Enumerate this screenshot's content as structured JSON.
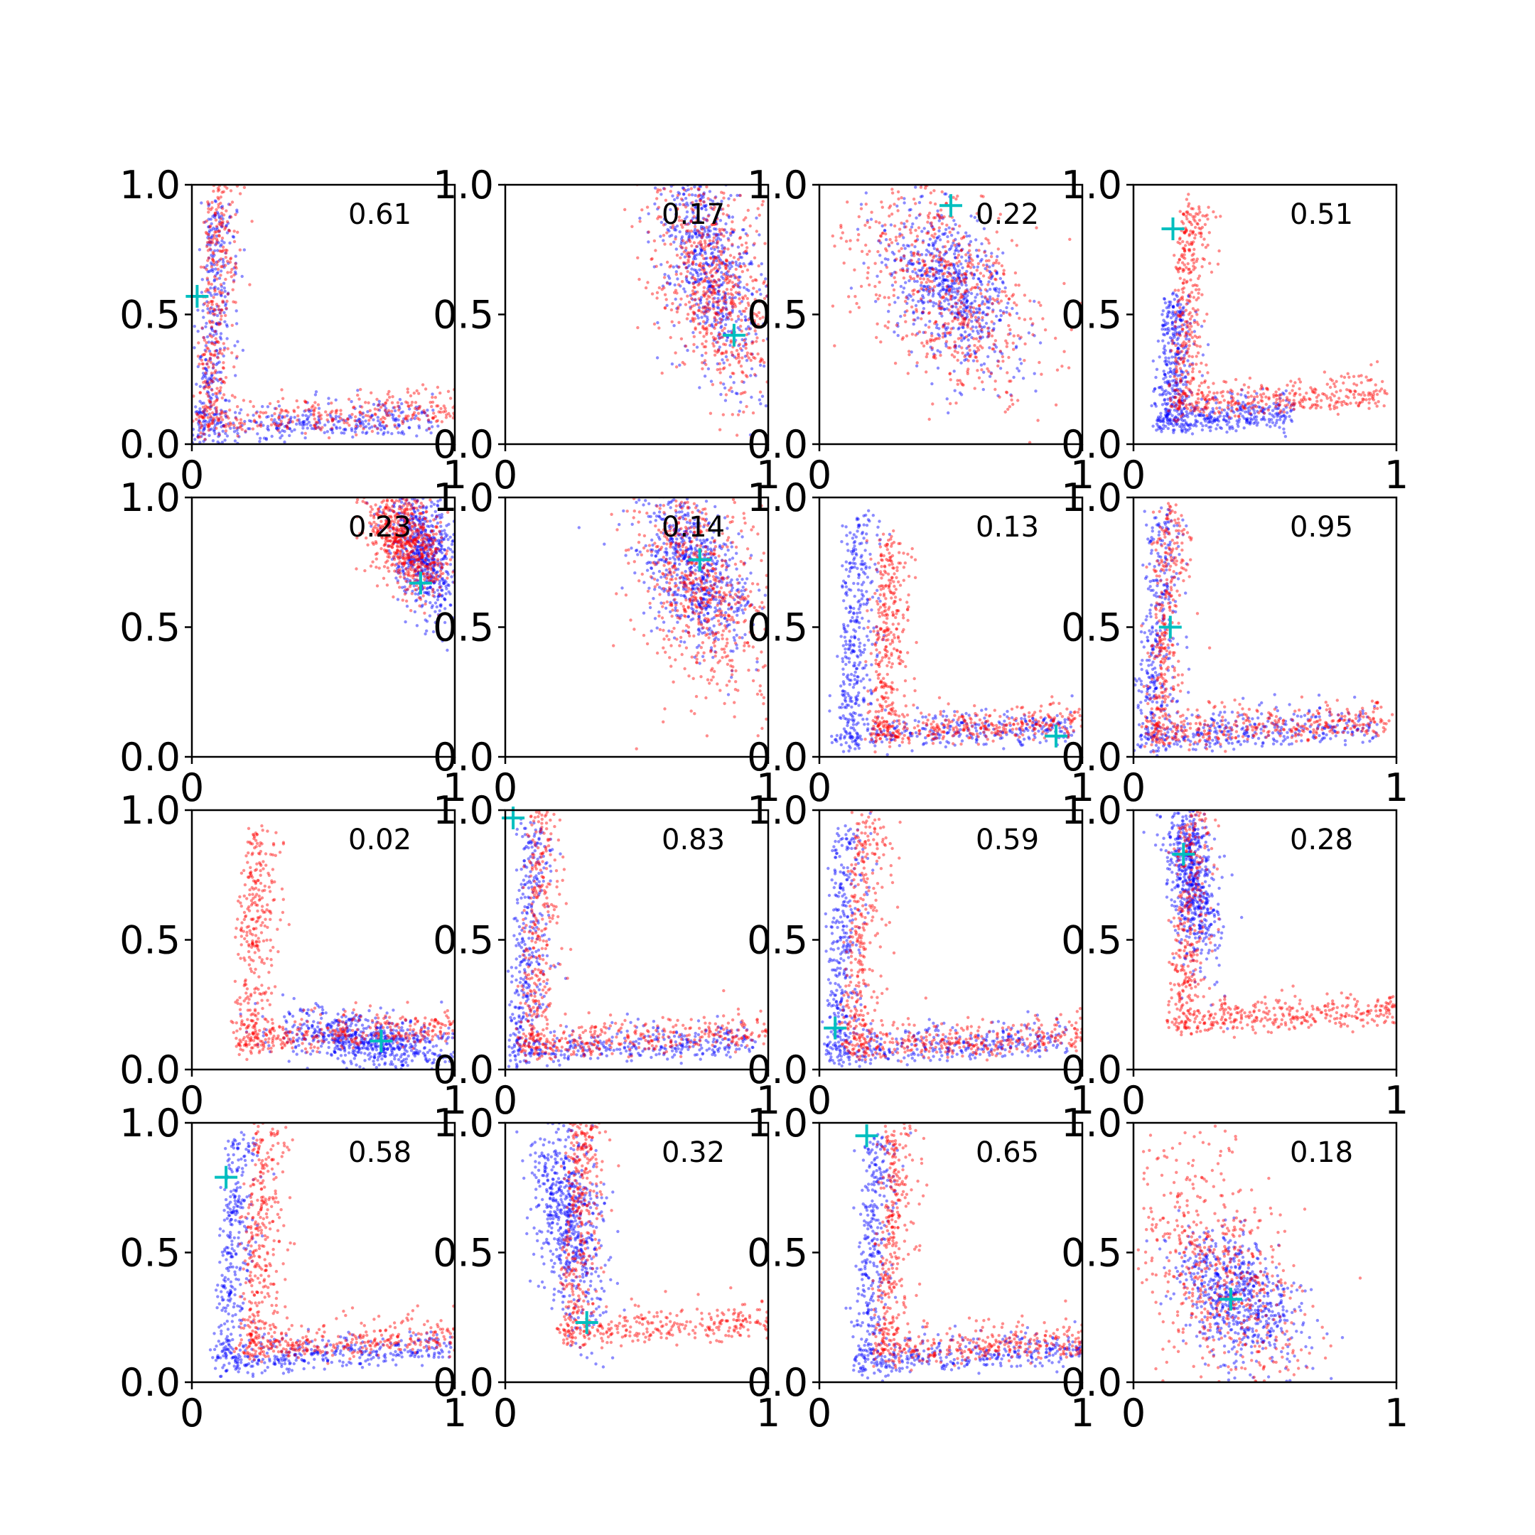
{
  "colors": {
    "series_a": "#0000ff",
    "series_b": "#ff0000",
    "marker": "#00bfbf",
    "axes": "#000000",
    "background": "#ffffff"
  },
  "chart_data": [
    {
      "type": "scatter",
      "annotation": "0.61",
      "marker": {
        "x": 0.02,
        "y": 0.57
      },
      "series": [
        {
          "pattern": "corner",
          "x0": 0.02,
          "y0": 0.02,
          "spread": 0.9
        },
        {
          "pattern": "corner",
          "x0": 0.03,
          "y0": 0.05,
          "spread": 1.0
        }
      ],
      "xlim": [
        0,
        1
      ],
      "ylim": [
        0,
        1
      ],
      "xticks": [
        "0",
        "1"
      ],
      "yticks": [
        "0.0",
        "0.5",
        "1.0"
      ]
    },
    {
      "type": "scatter",
      "annotation": "0.17",
      "marker": {
        "x": 0.87,
        "y": 0.42
      },
      "series": [
        {
          "pattern": "blob",
          "cx": 0.78,
          "cy": 0.7,
          "sx": 0.1,
          "sy": 0.2
        },
        {
          "pattern": "blob",
          "cx": 0.8,
          "cy": 0.62,
          "sx": 0.12,
          "sy": 0.2
        }
      ],
      "xlim": [
        0,
        1
      ],
      "ylim": [
        0,
        1
      ],
      "xticks": [
        "0",
        "1"
      ],
      "yticks": [
        "0.0",
        "0.5",
        "1.0"
      ]
    },
    {
      "type": "scatter",
      "annotation": "0.22",
      "marker": {
        "x": 0.5,
        "y": 0.92
      },
      "series": [
        {
          "pattern": "blob",
          "cx": 0.5,
          "cy": 0.6,
          "sx": 0.12,
          "sy": 0.14
        },
        {
          "pattern": "blob",
          "cx": 0.48,
          "cy": 0.6,
          "sx": 0.18,
          "sy": 0.2
        }
      ],
      "xlim": [
        0,
        1
      ],
      "ylim": [
        0,
        1
      ],
      "xticks": [
        "0",
        "1"
      ],
      "yticks": [
        "0.0",
        "0.5",
        "1.0"
      ]
    },
    {
      "type": "scatter",
      "annotation": "0.51",
      "marker": {
        "x": 0.15,
        "y": 0.83
      },
      "series": [
        {
          "pattern": "corner",
          "x0": 0.1,
          "y0": 0.06,
          "spread": 0.5
        },
        {
          "pattern": "corner",
          "x0": 0.15,
          "y0": 0.12,
          "spread": 0.8
        }
      ],
      "xlim": [
        0,
        1
      ],
      "ylim": [
        0,
        1
      ],
      "xticks": [
        "0",
        "1"
      ],
      "yticks": [
        "0.0",
        "0.5",
        "1.0"
      ]
    },
    {
      "type": "scatter",
      "annotation": "0.23",
      "marker": {
        "x": 0.87,
        "y": 0.67
      },
      "series": [
        {
          "pattern": "blob",
          "cx": 0.88,
          "cy": 0.8,
          "sx": 0.07,
          "sy": 0.12
        },
        {
          "pattern": "blob",
          "cx": 0.82,
          "cy": 0.83,
          "sx": 0.08,
          "sy": 0.09
        }
      ],
      "xlim": [
        0,
        1
      ],
      "ylim": [
        0,
        1
      ],
      "xticks": [
        "0",
        "1"
      ],
      "yticks": [
        "0.0",
        "0.5",
        "1.0"
      ]
    },
    {
      "type": "scatter",
      "annotation": "0.14",
      "marker": {
        "x": 0.74,
        "y": 0.76
      },
      "series": [
        {
          "pattern": "blob",
          "cx": 0.72,
          "cy": 0.72,
          "sx": 0.1,
          "sy": 0.14
        },
        {
          "pattern": "blob",
          "cx": 0.74,
          "cy": 0.65,
          "sx": 0.13,
          "sy": 0.2
        }
      ],
      "xlim": [
        0,
        1
      ],
      "ylim": [
        0,
        1
      ],
      "xticks": [
        "0",
        "1"
      ],
      "yticks": [
        "0.0",
        "0.5",
        "1.0"
      ]
    },
    {
      "type": "scatter",
      "annotation": "0.13",
      "marker": {
        "x": 0.9,
        "y": 0.08
      },
      "series": [
        {
          "pattern": "corner",
          "x0": 0.08,
          "y0": 0.04,
          "spread": 0.9
        },
        {
          "pattern": "corner",
          "x0": 0.2,
          "y0": 0.06,
          "spread": 0.8
        }
      ],
      "xlim": [
        0,
        1
      ],
      "ylim": [
        0,
        1
      ],
      "xticks": [
        "0",
        "1"
      ],
      "yticks": [
        "0.0",
        "0.5",
        "1.0"
      ]
    },
    {
      "type": "scatter",
      "annotation": "0.95",
      "marker": {
        "x": 0.14,
        "y": 0.5
      },
      "series": [
        {
          "pattern": "corner",
          "x0": 0.03,
          "y0": 0.04,
          "spread": 0.9
        },
        {
          "pattern": "corner",
          "x0": 0.06,
          "y0": 0.06,
          "spread": 0.9
        }
      ],
      "xlim": [
        0,
        1
      ],
      "ylim": [
        0,
        1
      ],
      "xticks": [
        "0",
        "1"
      ],
      "yticks": [
        "0.0",
        "0.5",
        "1.0"
      ]
    },
    {
      "type": "scatter",
      "annotation": "0.02",
      "marker": {
        "x": 0.72,
        "y": 0.11
      },
      "series": [
        {
          "pattern": "blob",
          "cx": 0.68,
          "cy": 0.11,
          "sx": 0.17,
          "sy": 0.05
        },
        {
          "pattern": "corner",
          "x0": 0.18,
          "y0": 0.08,
          "spread": 0.85
        }
      ],
      "xlim": [
        0,
        1
      ],
      "ylim": [
        0,
        1
      ],
      "xticks": [
        "0",
        "1"
      ],
      "yticks": [
        "0.0",
        "0.5",
        "1.0"
      ]
    },
    {
      "type": "scatter",
      "annotation": "0.83",
      "marker": {
        "x": 0.03,
        "y": 0.97
      },
      "series": [
        {
          "pattern": "corner",
          "x0": 0.03,
          "y0": 0.03,
          "spread": 0.9
        },
        {
          "pattern": "corner",
          "x0": 0.06,
          "y0": 0.06,
          "spread": 1.0
        }
      ],
      "xlim": [
        0,
        1
      ],
      "ylim": [
        0,
        1
      ],
      "xticks": [
        "0",
        "1"
      ],
      "yticks": [
        "0.0",
        "0.5",
        "1.0"
      ]
    },
    {
      "type": "scatter",
      "annotation": "0.59",
      "marker": {
        "x": 0.06,
        "y": 0.16
      },
      "series": [
        {
          "pattern": "corner",
          "x0": 0.03,
          "y0": 0.03,
          "spread": 0.9
        },
        {
          "pattern": "corner",
          "x0": 0.1,
          "y0": 0.05,
          "spread": 0.95
        }
      ],
      "xlim": [
        0,
        1
      ],
      "ylim": [
        0,
        1
      ],
      "xticks": [
        "0",
        "1"
      ],
      "yticks": [
        "0.0",
        "0.5",
        "1.0"
      ]
    },
    {
      "type": "scatter",
      "annotation": "0.28",
      "marker": {
        "x": 0.19,
        "y": 0.83
      },
      "series": [
        {
          "pattern": "blob",
          "cx": 0.22,
          "cy": 0.75,
          "sx": 0.05,
          "sy": 0.16
        },
        {
          "pattern": "corner",
          "x0": 0.15,
          "y0": 0.15,
          "spread": 0.85
        }
      ],
      "xlim": [
        0,
        1
      ],
      "ylim": [
        0,
        1
      ],
      "xticks": [
        "0",
        "1"
      ],
      "yticks": [
        "0.0",
        "0.5",
        "1.0"
      ]
    },
    {
      "type": "scatter",
      "annotation": "0.58",
      "marker": {
        "x": 0.13,
        "y": 0.79
      },
      "series": [
        {
          "pattern": "corner",
          "x0": 0.1,
          "y0": 0.05,
          "spread": 0.9
        },
        {
          "pattern": "corner",
          "x0": 0.2,
          "y0": 0.1,
          "spread": 0.9
        }
      ],
      "xlim": [
        0,
        1
      ],
      "ylim": [
        0,
        1
      ],
      "xticks": [
        "0",
        "1"
      ],
      "yticks": [
        "0.0",
        "0.5",
        "1.0"
      ]
    },
    {
      "type": "scatter",
      "annotation": "0.32",
      "marker": {
        "x": 0.31,
        "y": 0.23
      },
      "series": [
        {
          "pattern": "blob",
          "cx": 0.24,
          "cy": 0.62,
          "sx": 0.07,
          "sy": 0.2
        },
        {
          "pattern": "corner",
          "x0": 0.22,
          "y0": 0.16,
          "spread": 0.85
        }
      ],
      "xlim": [
        0,
        1
      ],
      "ylim": [
        0,
        1
      ],
      "xticks": [
        "0",
        "1"
      ],
      "yticks": [
        "0.0",
        "0.5",
        "1.0"
      ]
    },
    {
      "type": "scatter",
      "annotation": "0.65",
      "marker": {
        "x": 0.18,
        "y": 0.95
      },
      "series": [
        {
          "pattern": "corner",
          "x0": 0.14,
          "y0": 0.05,
          "spread": 0.9
        },
        {
          "pattern": "corner",
          "x0": 0.22,
          "y0": 0.08,
          "spread": 0.9
        }
      ],
      "xlim": [
        0,
        1
      ],
      "ylim": [
        0,
        1
      ],
      "xticks": [
        "0",
        "1"
      ],
      "yticks": [
        "0.0",
        "0.5",
        "1.0"
      ]
    },
    {
      "type": "scatter",
      "annotation": "0.18",
      "marker": {
        "x": 0.37,
        "y": 0.32
      },
      "series": [
        {
          "pattern": "blob",
          "cx": 0.4,
          "cy": 0.32,
          "sx": 0.12,
          "sy": 0.12
        },
        {
          "pattern": "blob",
          "cx": 0.33,
          "cy": 0.4,
          "sx": 0.18,
          "sy": 0.25
        }
      ],
      "xlim": [
        0,
        1
      ],
      "ylim": [
        0,
        1
      ],
      "xticks": [
        "0",
        "1"
      ],
      "yticks": [
        "0.0",
        "0.5",
        "1.0"
      ]
    }
  ]
}
